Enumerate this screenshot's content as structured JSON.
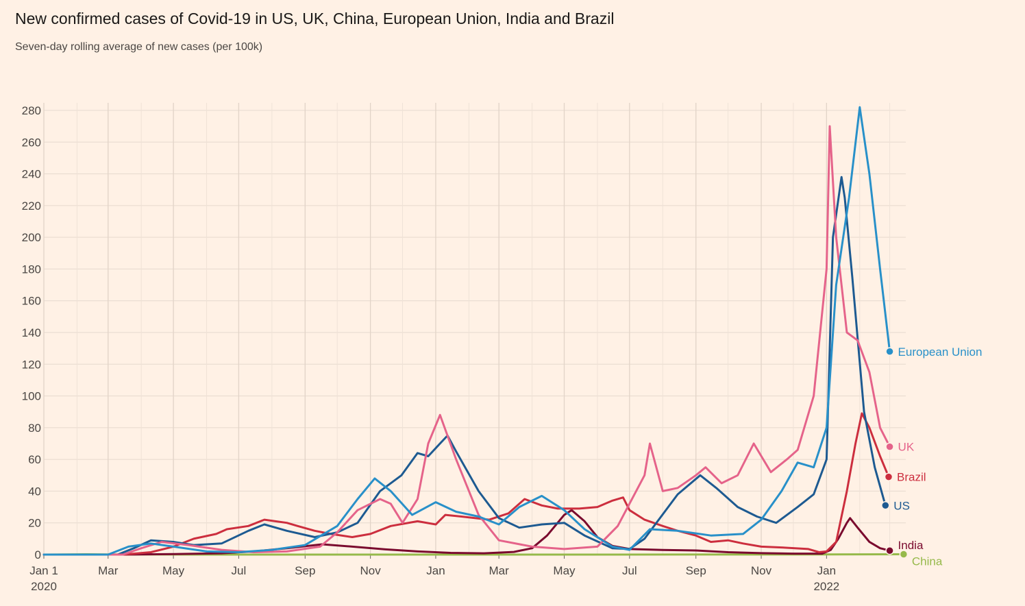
{
  "title": "New confirmed cases of Covid-19 in US, UK, China, European Union, India and Brazil",
  "subtitle": "Seven-day rolling average of new cases (per 100k)",
  "chart_data": {
    "type": "line",
    "title": "New confirmed cases of Covid-19 in US, UK, China, European Union, India and Brazil",
    "subtitle": "Seven-day rolling average of new cases (per 100k)",
    "x_axis": {
      "type": "date",
      "range": [
        "2020-01-01",
        "2022-03-16"
      ],
      "ticks": [
        {
          "date": "2020-01-01",
          "label": "Jan 1",
          "sublabel": "2020"
        },
        {
          "date": "2020-03-01",
          "label": "Mar"
        },
        {
          "date": "2020-05-01",
          "label": "May"
        },
        {
          "date": "2020-07-01",
          "label": "Jul"
        },
        {
          "date": "2020-09-01",
          "label": "Sep"
        },
        {
          "date": "2020-11-01",
          "label": "Nov"
        },
        {
          "date": "2021-01-01",
          "label": "Jan"
        },
        {
          "date": "2021-03-01",
          "label": "Mar"
        },
        {
          "date": "2021-05-01",
          "label": "May"
        },
        {
          "date": "2021-07-01",
          "label": "Jul"
        },
        {
          "date": "2021-09-01",
          "label": "Sep"
        },
        {
          "date": "2021-11-01",
          "label": "Nov"
        },
        {
          "date": "2022-01-01",
          "label": "Jan",
          "sublabel": "2022"
        }
      ]
    },
    "y_axis": {
      "range": [
        0,
        285
      ],
      "ticks": [
        0,
        20,
        40,
        60,
        80,
        100,
        120,
        140,
        160,
        180,
        200,
        220,
        240,
        260,
        280
      ],
      "gridlines": true
    },
    "series": [
      {
        "name": "China",
        "color": "#96b94a",
        "points": [
          [
            "2020-01-01",
            0
          ],
          [
            "2020-02-10",
            0.2
          ],
          [
            "2020-03-01",
            0.1
          ],
          [
            "2020-06-01",
            0
          ],
          [
            "2021-06-01",
            0
          ],
          [
            "2022-01-01",
            0.1
          ],
          [
            "2022-03-14",
            0.2
          ]
        ]
      },
      {
        "name": "India",
        "color": "#7a0a2e",
        "points": [
          [
            "2020-01-01",
            0
          ],
          [
            "2020-03-15",
            0
          ],
          [
            "2020-05-01",
            0.3
          ],
          [
            "2020-06-15",
            0.8
          ],
          [
            "2020-07-15",
            2
          ],
          [
            "2020-08-15",
            4
          ],
          [
            "2020-09-17",
            6.5
          ],
          [
            "2020-10-15",
            5
          ],
          [
            "2020-11-15",
            3.3
          ],
          [
            "2020-12-15",
            2
          ],
          [
            "2021-01-15",
            1.1
          ],
          [
            "2021-02-15",
            0.8
          ],
          [
            "2021-03-15",
            1.7
          ],
          [
            "2021-04-01",
            4
          ],
          [
            "2021-04-15",
            12
          ],
          [
            "2021-05-01",
            25
          ],
          [
            "2021-05-08",
            28
          ],
          [
            "2021-05-20",
            21
          ],
          [
            "2021-06-01",
            11
          ],
          [
            "2021-06-15",
            5.5
          ],
          [
            "2021-07-01",
            3.5
          ],
          [
            "2021-08-01",
            2.9
          ],
          [
            "2021-09-01",
            2.6
          ],
          [
            "2021-10-01",
            1.5
          ],
          [
            "2021-11-01",
            0.9
          ],
          [
            "2021-12-01",
            0.6
          ],
          [
            "2021-12-28",
            0.6
          ],
          [
            "2022-01-05",
            3
          ],
          [
            "2022-01-12",
            10
          ],
          [
            "2022-01-20",
            20
          ],
          [
            "2022-01-23",
            23
          ],
          [
            "2022-01-30",
            17
          ],
          [
            "2022-02-10",
            8
          ],
          [
            "2022-02-20",
            4
          ],
          [
            "2022-03-01",
            2.5
          ]
        ]
      },
      {
        "name": "Brazil",
        "color": "#cc2e3e",
        "points": [
          [
            "2020-01-01",
            0
          ],
          [
            "2020-03-15",
            0
          ],
          [
            "2020-04-10",
            1.5
          ],
          [
            "2020-05-01",
            5
          ],
          [
            "2020-05-20",
            10
          ],
          [
            "2020-06-10",
            13
          ],
          [
            "2020-06-20",
            16
          ],
          [
            "2020-07-10",
            18
          ],
          [
            "2020-07-25",
            22
          ],
          [
            "2020-08-15",
            20
          ],
          [
            "2020-08-25",
            18
          ],
          [
            "2020-09-10",
            15
          ],
          [
            "2020-09-25",
            13
          ],
          [
            "2020-10-15",
            11
          ],
          [
            "2020-11-01",
            13
          ],
          [
            "2020-11-20",
            18
          ],
          [
            "2020-12-15",
            21
          ],
          [
            "2021-01-01",
            19
          ],
          [
            "2021-01-10",
            25
          ],
          [
            "2021-01-25",
            24
          ],
          [
            "2021-02-20",
            22
          ],
          [
            "2021-03-10",
            26
          ],
          [
            "2021-03-25",
            35
          ],
          [
            "2021-04-10",
            31
          ],
          [
            "2021-04-25",
            29
          ],
          [
            "2021-05-15",
            29
          ],
          [
            "2021-06-01",
            30
          ],
          [
            "2021-06-15",
            34
          ],
          [
            "2021-06-25",
            36
          ],
          [
            "2021-07-01",
            28
          ],
          [
            "2021-07-15",
            22
          ],
          [
            "2021-08-01",
            18
          ],
          [
            "2021-08-15",
            15
          ],
          [
            "2021-09-01",
            12
          ],
          [
            "2021-09-15",
            8
          ],
          [
            "2021-10-01",
            9
          ],
          [
            "2021-10-15",
            7
          ],
          [
            "2021-11-01",
            5
          ],
          [
            "2021-11-20",
            4.5
          ],
          [
            "2021-12-15",
            3.5
          ],
          [
            "2021-12-25",
            1.5
          ],
          [
            "2022-01-01",
            2
          ],
          [
            "2022-01-10",
            8
          ],
          [
            "2022-01-20",
            40
          ],
          [
            "2022-01-28",
            70
          ],
          [
            "2022-02-03",
            89
          ],
          [
            "2022-02-10",
            80
          ],
          [
            "2022-02-20",
            62
          ],
          [
            "2022-02-28",
            49
          ]
        ]
      },
      {
        "name": "US",
        "color": "#1d5a91",
        "points": [
          [
            "2020-01-01",
            0
          ],
          [
            "2020-03-10",
            0
          ],
          [
            "2020-03-25",
            4
          ],
          [
            "2020-04-10",
            9
          ],
          [
            "2020-05-01",
            8
          ],
          [
            "2020-05-20",
            6
          ],
          [
            "2020-06-15",
            7
          ],
          [
            "2020-07-10",
            15
          ],
          [
            "2020-07-25",
            19
          ],
          [
            "2020-08-15",
            15
          ],
          [
            "2020-09-10",
            11
          ],
          [
            "2020-10-01",
            14
          ],
          [
            "2020-10-20",
            20
          ],
          [
            "2020-11-10",
            40
          ],
          [
            "2020-11-30",
            50
          ],
          [
            "2020-12-15",
            64
          ],
          [
            "2020-12-25",
            62
          ],
          [
            "2021-01-05",
            70
          ],
          [
            "2021-01-12",
            75
          ],
          [
            "2021-01-20",
            65
          ],
          [
            "2021-02-10",
            40
          ],
          [
            "2021-03-01",
            23
          ],
          [
            "2021-03-20",
            17
          ],
          [
            "2021-04-10",
            19
          ],
          [
            "2021-05-01",
            20
          ],
          [
            "2021-05-20",
            12
          ],
          [
            "2021-06-15",
            4
          ],
          [
            "2021-07-01",
            3.5
          ],
          [
            "2021-07-15",
            10
          ],
          [
            "2021-08-15",
            38
          ],
          [
            "2021-09-05",
            50
          ],
          [
            "2021-09-20",
            42
          ],
          [
            "2021-10-10",
            30
          ],
          [
            "2021-10-28",
            24
          ],
          [
            "2021-11-15",
            20
          ],
          [
            "2021-12-05",
            30
          ],
          [
            "2021-12-20",
            38
          ],
          [
            "2022-01-01",
            60
          ],
          [
            "2022-01-07",
            200
          ],
          [
            "2022-01-15",
            238
          ],
          [
            "2022-01-18",
            225
          ],
          [
            "2022-01-25",
            175
          ],
          [
            "2022-02-05",
            90
          ],
          [
            "2022-02-15",
            55
          ],
          [
            "2022-02-25",
            31
          ]
        ]
      },
      {
        "name": "UK",
        "color": "#e5638a",
        "points": [
          [
            "2020-01-01",
            0
          ],
          [
            "2020-03-15",
            0
          ],
          [
            "2020-04-01",
            4
          ],
          [
            "2020-04-20",
            8
          ],
          [
            "2020-05-15",
            6
          ],
          [
            "2020-06-15",
            3
          ],
          [
            "2020-07-15",
            1.5
          ],
          [
            "2020-08-15",
            2
          ],
          [
            "2020-09-15",
            5
          ],
          [
            "2020-10-01",
            14
          ],
          [
            "2020-10-20",
            28
          ],
          [
            "2020-11-10",
            35
          ],
          [
            "2020-11-20",
            32
          ],
          [
            "2020-12-01",
            20
          ],
          [
            "2020-12-15",
            35
          ],
          [
            "2020-12-25",
            70
          ],
          [
            "2021-01-05",
            88
          ],
          [
            "2021-01-20",
            60
          ],
          [
            "2021-02-10",
            25
          ],
          [
            "2021-03-01",
            9
          ],
          [
            "2021-04-01",
            5
          ],
          [
            "2021-05-01",
            3.5
          ],
          [
            "2021-06-01",
            5
          ],
          [
            "2021-06-20",
            18
          ],
          [
            "2021-07-15",
            50
          ],
          [
            "2021-07-20",
            70
          ],
          [
            "2021-08-01",
            40
          ],
          [
            "2021-08-15",
            42
          ],
          [
            "2021-09-01",
            50
          ],
          [
            "2021-09-10",
            55
          ],
          [
            "2021-09-25",
            45
          ],
          [
            "2021-10-10",
            50
          ],
          [
            "2021-10-25",
            70
          ],
          [
            "2021-11-10",
            52
          ],
          [
            "2021-11-25",
            60
          ],
          [
            "2021-12-05",
            66
          ],
          [
            "2021-12-20",
            100
          ],
          [
            "2022-01-01",
            180
          ],
          [
            "2022-01-04",
            270
          ],
          [
            "2022-01-10",
            200
          ],
          [
            "2022-01-20",
            140
          ],
          [
            "2022-01-30",
            135
          ],
          [
            "2022-02-10",
            115
          ],
          [
            "2022-02-20",
            80
          ],
          [
            "2022-03-01",
            68
          ]
        ]
      },
      {
        "name": "European Union",
        "color": "#2890c9",
        "points": [
          [
            "2020-01-01",
            0
          ],
          [
            "2020-03-01",
            0
          ],
          [
            "2020-03-20",
            5
          ],
          [
            "2020-04-10",
            7
          ],
          [
            "2020-05-01",
            5
          ],
          [
            "2020-06-01",
            2
          ],
          [
            "2020-07-01",
            1.5
          ],
          [
            "2020-08-01",
            3
          ],
          [
            "2020-09-01",
            6
          ],
          [
            "2020-10-01",
            18
          ],
          [
            "2020-10-20",
            35
          ],
          [
            "2020-11-05",
            48
          ],
          [
            "2020-11-20",
            40
          ],
          [
            "2020-12-10",
            25
          ],
          [
            "2021-01-01",
            33
          ],
          [
            "2021-01-20",
            27
          ],
          [
            "2021-02-10",
            24
          ],
          [
            "2021-03-01",
            19
          ],
          [
            "2021-03-20",
            30
          ],
          [
            "2021-04-10",
            37
          ],
          [
            "2021-05-01",
            28
          ],
          [
            "2021-05-20",
            16
          ],
          [
            "2021-06-15",
            5
          ],
          [
            "2021-07-01",
            3
          ],
          [
            "2021-07-20",
            16
          ],
          [
            "2021-08-15",
            15
          ],
          [
            "2021-09-15",
            12
          ],
          [
            "2021-10-15",
            13
          ],
          [
            "2021-11-01",
            22
          ],
          [
            "2021-11-20",
            40
          ],
          [
            "2021-12-05",
            58
          ],
          [
            "2021-12-20",
            55
          ],
          [
            "2022-01-01",
            80
          ],
          [
            "2022-01-10",
            170
          ],
          [
            "2022-01-22",
            225
          ],
          [
            "2022-02-01",
            282
          ],
          [
            "2022-02-10",
            240
          ],
          [
            "2022-02-20",
            180
          ],
          [
            "2022-03-01",
            128
          ]
        ]
      }
    ],
    "end_labels": [
      {
        "series": "European Union",
        "text": "European Union",
        "value": 128
      },
      {
        "series": "UK",
        "text": "UK",
        "value": 68
      },
      {
        "series": "Brazil",
        "text": "Brazil",
        "value": 49
      },
      {
        "series": "US",
        "text": "US",
        "value": 31
      },
      {
        "series": "India",
        "text": "India",
        "value": 2.5
      },
      {
        "series": "China",
        "text": "China",
        "value": 0.2
      }
    ]
  }
}
